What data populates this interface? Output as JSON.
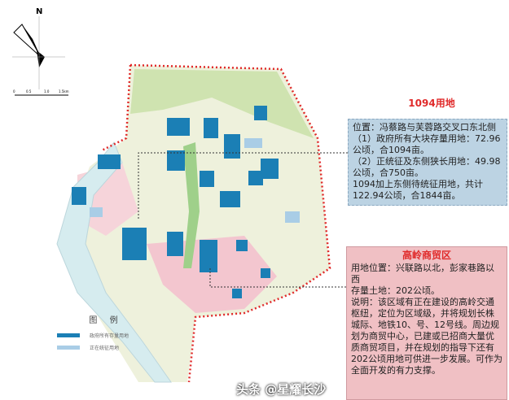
{
  "compass": {
    "north_label": "N",
    "scale_labels": [
      "0",
      "0.5",
      "1.0",
      "1.5km"
    ]
  },
  "legend": {
    "title": "图 例",
    "items": [
      {
        "label": "政府所有存量用地",
        "color": "#1b7fb5"
      },
      {
        "label": "正在统征用地",
        "color": "#a9cde6"
      }
    ]
  },
  "site1": {
    "title": "1094用地",
    "lines": [
      "位置：冯蔡路与芙蓉路交叉口东北侧",
      "（1）政府所有大块存量用地：72.96公顷，合1094亩。",
      "（2）正统征及东侧狭长用地：49.98公顷，合750亩。",
      "1094加上东侧待统征用地，共计122.94公顷，合1844亩。"
    ]
  },
  "site2": {
    "title": "高岭商贸区",
    "lines": [
      "用地位置：兴联路以北，彭家巷路以西",
      "存量土地：202公顷。",
      "说明：该区域有正在建设的高岭交通枢纽，定位为区域级，并将规划长株城际、地铁10、号、12号线。周边规划为商贸中心，已建或已招商大量优质商贸项目，并在规划的指导下还有202公顷用地可供进一步发展。可作为全面开发的有力支撑。"
    ]
  },
  "watermark": "头条 @星耀长沙",
  "colors": {
    "boundary": "#e02a2a",
    "parcel": "#1b7fb5",
    "parcel_light": "#a9cde6",
    "green": "#cfe3b0",
    "pink": "#f3c6cf",
    "river": "#d6ecef"
  }
}
